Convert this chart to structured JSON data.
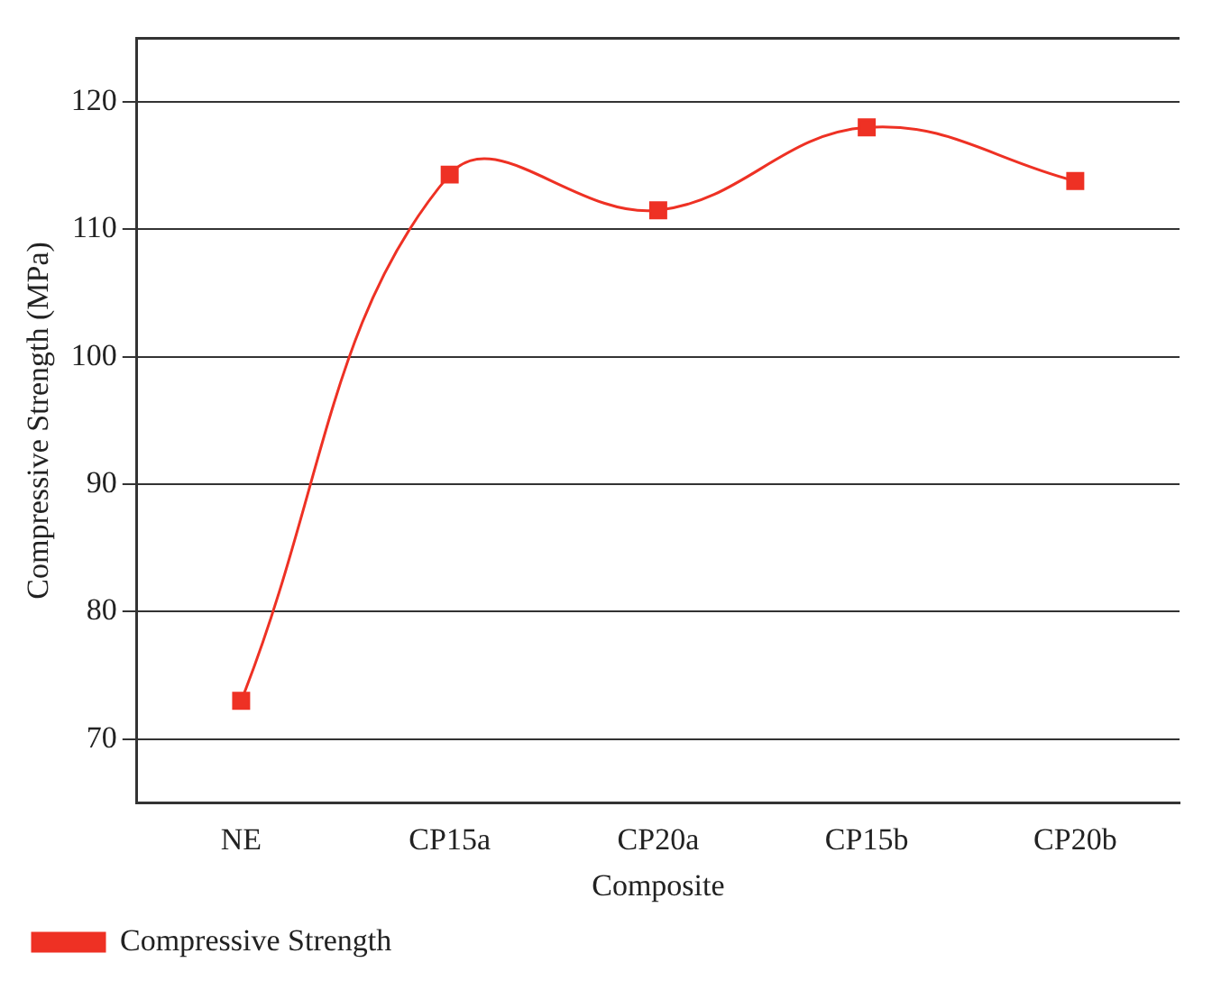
{
  "chart_data": {
    "type": "line",
    "xlabel": "Composite",
    "ylabel": "Compressive Strength (MPa)",
    "categories": [
      "NE",
      "CP15a",
      "CP20a",
      "CP15b",
      "CP20b"
    ],
    "series": [
      {
        "name": "Compressive Strength",
        "color": "#ee3124",
        "values": [
          73,
          114.3,
          111.5,
          118,
          113.8
        ]
      }
    ],
    "ylim": [
      65,
      125
    ],
    "yticks": [
      70,
      80,
      90,
      100,
      110,
      120
    ],
    "grid": "y",
    "legend": "bottom left",
    "marker": "square",
    "line_style": "solid"
  }
}
